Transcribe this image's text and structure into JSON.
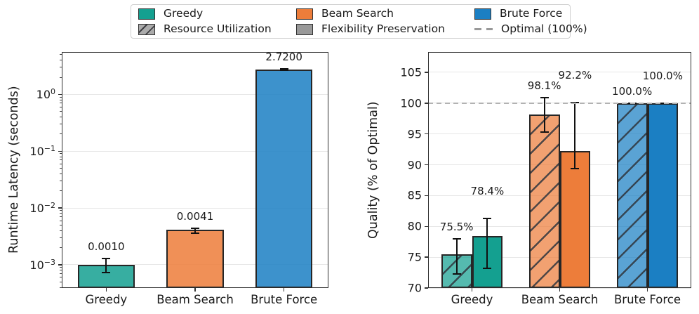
{
  "legend": {
    "items": [
      {
        "label": "Greedy",
        "swatch": "solid",
        "color": "#14a090"
      },
      {
        "label": "Beam Search",
        "swatch": "solid",
        "color": "#ed7d3a"
      },
      {
        "label": "Brute Force",
        "swatch": "solid",
        "color": "#1b7fc3"
      },
      {
        "label": "Resource Utilization",
        "swatch": "hatched",
        "color": "#ababab"
      },
      {
        "label": "Flexibility Preservation",
        "swatch": "solid",
        "color": "#999999"
      },
      {
        "label": "Optimal (100%)",
        "swatch": "dashed-line",
        "color": "#999999"
      }
    ]
  },
  "chart_data": [
    {
      "type": "bar",
      "scale": "log",
      "ylabel": "Runtime Latency (seconds)",
      "categories": [
        "Greedy",
        "Beam Search",
        "Brute Force"
      ],
      "values": [
        0.001,
        0.0041,
        2.72
      ],
      "value_labels": [
        "0.0010",
        "0.0041",
        "2.7200"
      ],
      "error_low": [
        0.00072,
        0.00365,
        2.66
      ],
      "error_high": [
        0.00128,
        0.00435,
        2.79
      ],
      "bar_colors": [
        "#14a090",
        "#ed7d3a",
        "#1b7fc3"
      ],
      "ylim": [
        0.00039,
        5.6
      ],
      "yticks": [
        {
          "exp": 0,
          "label_exp": "0"
        },
        {
          "exp": -1,
          "label_exp": "−1"
        },
        {
          "exp": -2,
          "label_exp": "−2"
        },
        {
          "exp": -3,
          "label_exp": "−3"
        }
      ],
      "grid": true,
      "legend_position": "top"
    },
    {
      "type": "grouped-bar",
      "scale": "linear",
      "ylabel": "Quality (% of Optimal)",
      "categories": [
        "Greedy",
        "Beam Search",
        "Brute Force"
      ],
      "bar_colors": [
        "#14a090",
        "#ed7d3a",
        "#1b7fc3"
      ],
      "series": [
        {
          "name": "Resource Utilization",
          "hatched": true,
          "values": [
            75.5,
            98.1,
            100.0
          ],
          "value_labels": [
            "75.5%",
            "98.1%",
            "100.0%"
          ],
          "error_low": [
            72.3,
            95.3,
            100.0
          ],
          "error_high": [
            78.0,
            100.9,
            100.0
          ]
        },
        {
          "name": "Flexibility Preservation",
          "hatched": false,
          "values": [
            78.4,
            92.2,
            100.0
          ],
          "value_labels": [
            "78.4%",
            "92.2%",
            "100.0%"
          ],
          "error_low": [
            73.2,
            89.4,
            100.0
          ],
          "error_high": [
            81.3,
            100.1,
            100.0
          ]
        }
      ],
      "ylim": [
        70,
        108.3
      ],
      "yticks": [
        70,
        75,
        80,
        85,
        90,
        95,
        100,
        105
      ],
      "optimal_line": {
        "value": 100,
        "label": "Optimal (100%)"
      },
      "grid": true
    }
  ]
}
